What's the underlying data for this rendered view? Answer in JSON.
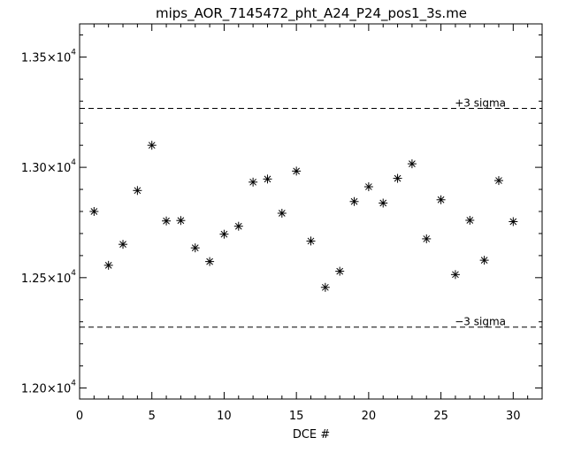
{
  "chart_data": {
    "type": "scatter",
    "title": "mips_AOR_7145472_pht_A24_P24_pos1_3s.me",
    "xlabel": "DCE #",
    "ylabel": "",
    "xlim": [
      0,
      32
    ],
    "ylim": [
      11950,
      13650
    ],
    "x_ticks": [
      {
        "value": 0,
        "label": "0"
      },
      {
        "value": 5,
        "label": "5"
      },
      {
        "value": 10,
        "label": "10"
      },
      {
        "value": 15,
        "label": "15"
      },
      {
        "value": 20,
        "label": "20"
      },
      {
        "value": 25,
        "label": "25"
      },
      {
        "value": 30,
        "label": "30"
      }
    ],
    "y_ticks": [
      {
        "value": 12000,
        "mantissa": "1.20",
        "times": "×10",
        "exp": "4"
      },
      {
        "value": 12500,
        "mantissa": "1.25",
        "times": "×10",
        "exp": "4"
      },
      {
        "value": 13000,
        "mantissa": "1.30",
        "times": "×10",
        "exp": "4"
      },
      {
        "value": 13500,
        "mantissa": "1.35",
        "times": "×10",
        "exp": "4"
      }
    ],
    "marker": "asterisk",
    "grid": false,
    "x": [
      1,
      2,
      3,
      4,
      5,
      6,
      7,
      8,
      9,
      10,
      11,
      12,
      13,
      14,
      15,
      16,
      17,
      18,
      19,
      20,
      21,
      22,
      23,
      24,
      25,
      26,
      27,
      28,
      29,
      30
    ],
    "y": [
      12800,
      12556,
      12651,
      12895,
      13100,
      12757,
      12759,
      12635,
      12573,
      12697,
      12733,
      12933,
      12947,
      12792,
      12983,
      12666,
      12456,
      12529,
      12845,
      12912,
      12838,
      12950,
      13016,
      12676,
      12853,
      12514,
      12760,
      12579,
      12940,
      12754
    ],
    "reference_lines": [
      {
        "value": 13267,
        "label": "+3 sigma"
      },
      {
        "value": 12276,
        "label": "−3 sigma"
      }
    ]
  }
}
